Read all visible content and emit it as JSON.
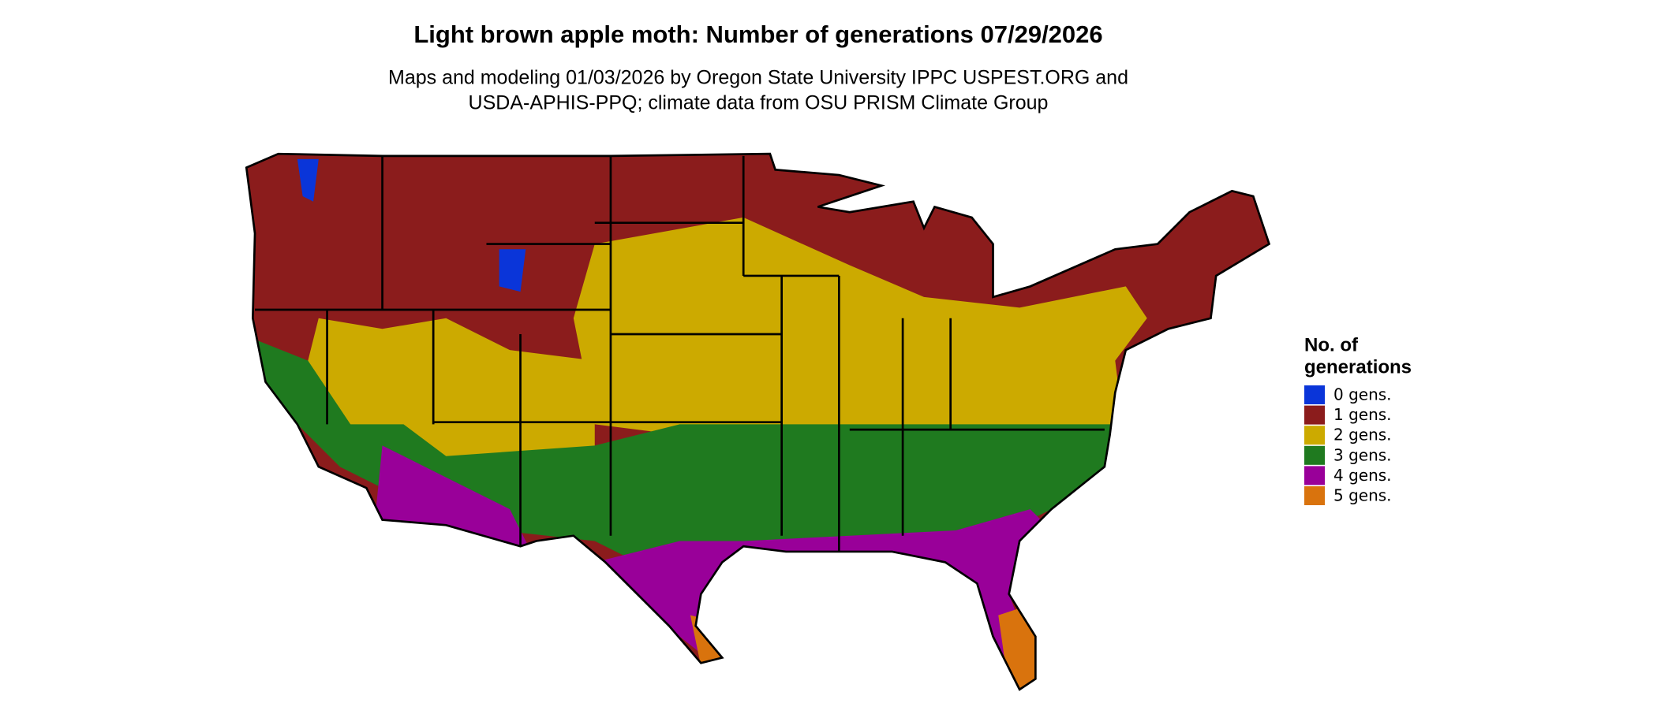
{
  "title": "Light brown apple moth: Number of generations 07/29/2026",
  "subtitle": [
    "Maps and modeling 01/03/2026 by Oregon State University IPPC USPEST.ORG and",
    "USDA-APHIS-PPQ; climate data from OSU PRISM Climate Group"
  ],
  "legend": {
    "title": [
      "No. of",
      "generations"
    ],
    "items": [
      {
        "label": "0 gens.",
        "color": "#0a35d9"
      },
      {
        "label": "1 gens.",
        "color": "#8b1c1c"
      },
      {
        "label": "2 gens.",
        "color": "#ccaa00"
      },
      {
        "label": "3 gens.",
        "color": "#1f7a1f"
      },
      {
        "label": "4 gens.",
        "color": "#990099"
      },
      {
        "label": "5 gens.",
        "color": "#d9730d"
      }
    ]
  }
}
